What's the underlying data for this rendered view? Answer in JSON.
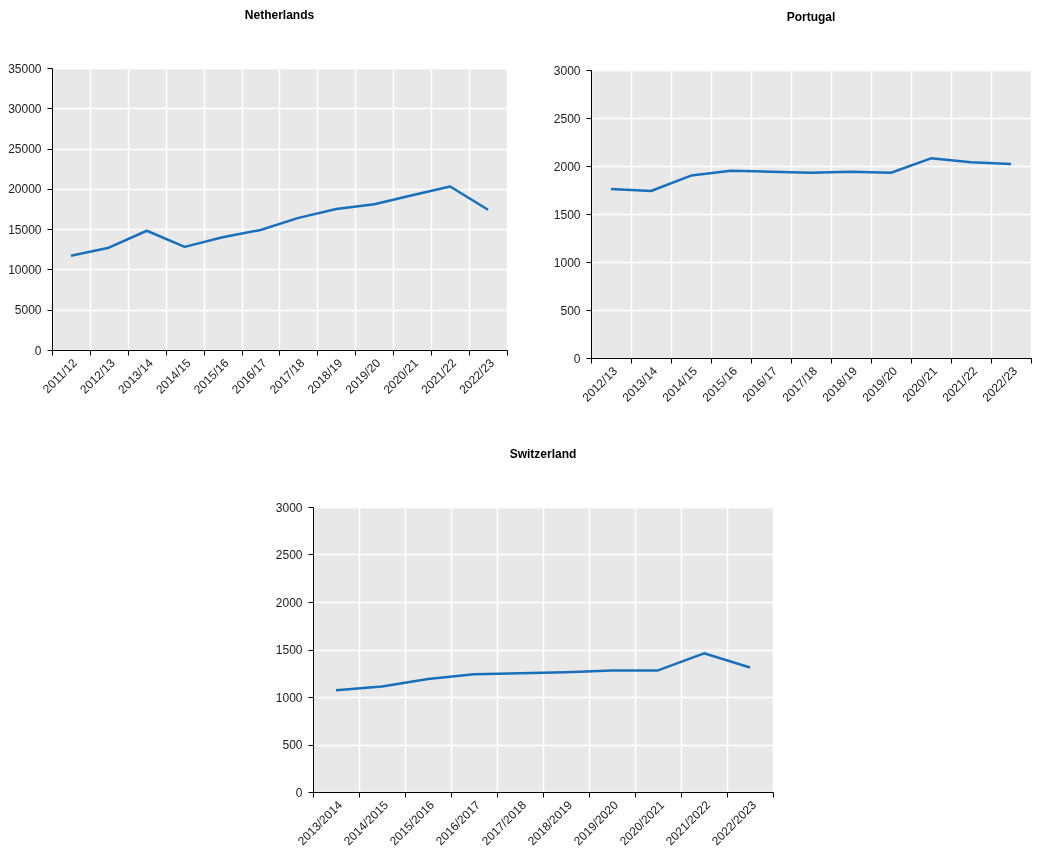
{
  "chart_data": [
    {
      "type": "line",
      "title": "Netherlands",
      "categories": [
        "2011/12",
        "2012/13",
        "2013/14",
        "2014/15",
        "2015/16",
        "2016/17",
        "2017/18",
        "2018/19",
        "2019/20",
        "2020/21",
        "2021/22",
        "2022/23"
      ],
      "values": [
        11700,
        12700,
        14800,
        12800,
        14000,
        14900,
        16400,
        17500,
        18100,
        19200,
        20300,
        17400
      ],
      "color": "#1a6fba",
      "ylim": [
        0,
        35000
      ],
      "yticks": [
        0,
        5000,
        10000,
        15000,
        20000,
        25000,
        30000,
        35000
      ],
      "grid": true
    },
    {
      "type": "line",
      "title": "Portugal",
      "categories": [
        "2012/13",
        "2013/14",
        "2014/15",
        "2015/16",
        "2016/17",
        "2017/18",
        "2018/19",
        "2019/20",
        "2020/21",
        "2021/22",
        "2022/23"
      ],
      "values": [
        1760,
        1740,
        1900,
        1950,
        1940,
        1930,
        1940,
        1930,
        2080,
        2040,
        2020
      ],
      "color": "#1a6fba",
      "ylim": [
        0,
        3000
      ],
      "yticks": [
        0,
        500,
        1000,
        1500,
        2000,
        2500,
        3000
      ],
      "grid": true
    },
    {
      "type": "line",
      "title": "Switzerland",
      "categories": [
        "2013/2014",
        "2014/2015",
        "2015/2016",
        "2016/2017",
        "2017/2018",
        "2018/2019",
        "2019/2020",
        "2020/2021",
        "2021/2022",
        "2022/2023"
      ],
      "values": [
        1070,
        1110,
        1190,
        1240,
        1250,
        1260,
        1280,
        1280,
        1460,
        1310
      ],
      "color": "#1a6fba",
      "ylim": [
        0,
        3000
      ],
      "yticks": [
        0,
        500,
        1000,
        1500,
        2000,
        2500,
        3000
      ],
      "grid": true
    }
  ]
}
